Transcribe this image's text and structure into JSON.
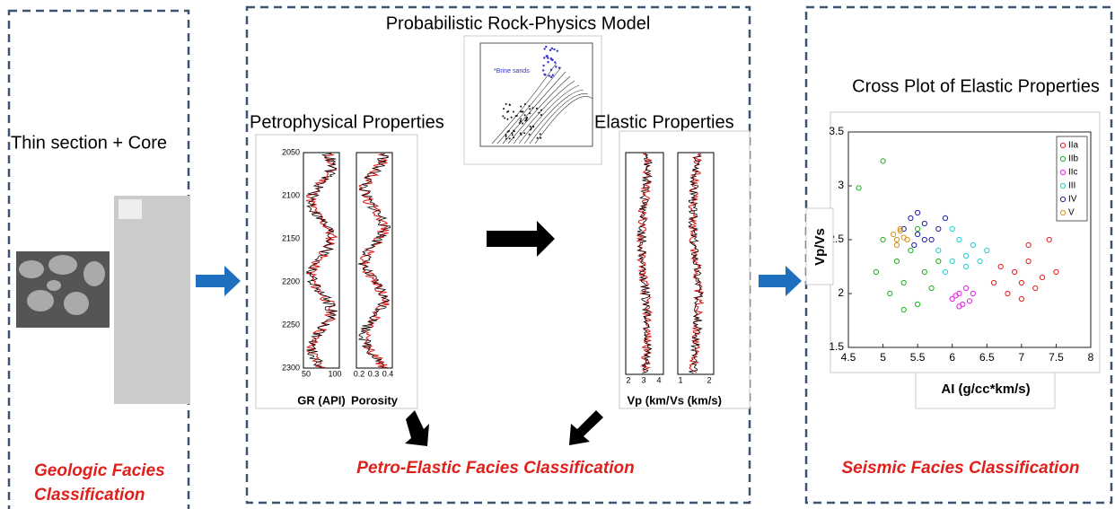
{
  "panels": [
    {
      "title": "Thin section + Core",
      "caption": [
        "Geologic Facies",
        "Classification"
      ]
    },
    {
      "title": "Probabilistic Rock-Physics Model",
      "caption": "Petro-Elastic Facies Classification",
      "inset_note": "*Brine sands",
      "petrophysical": {
        "title": "Petrophysical Properties",
        "depth_ticks": [
          2050,
          2100,
          2150,
          2200,
          2250,
          2300
        ],
        "tracks": [
          {
            "label": "GR (API)",
            "ticks": [
              50,
              100
            ]
          },
          {
            "label": "Porosity",
            "ticks": [
              0.2,
              0.3,
              0.4
            ]
          }
        ]
      },
      "elastic": {
        "title": "Elastic Properties",
        "tracks": [
          {
            "label": "Vp (km/",
            "ticks": [
              2,
              3,
              4
            ]
          },
          {
            "label": "Vs (km/s)",
            "ticks": [
              1,
              2
            ]
          }
        ]
      }
    },
    {
      "title": "Cross Plot of Elastic Properties",
      "caption": "Seismic Facies Classification"
    }
  ],
  "chart_data": {
    "type": "scatter",
    "xlabel": "AI (g/cc*km/s)",
    "ylabel": "Vp/Vs",
    "xlim": [
      4.5,
      8
    ],
    "ylim": [
      1.5,
      3.5
    ],
    "xticks": [
      4.5,
      5,
      5.5,
      6,
      6.5,
      7,
      7.5,
      8
    ],
    "yticks": [
      1.5,
      2,
      2.5,
      3,
      3.5
    ],
    "legend": "upper right",
    "series": [
      {
        "name": "IIa",
        "color": "#e02020",
        "x": [
          6.6,
          6.8,
          6.9,
          7.0,
          7.0,
          7.1,
          7.2,
          7.3,
          7.4,
          6.7,
          7.5,
          7.1
        ],
        "values": [
          2.1,
          2.0,
          2.2,
          2.1,
          1.95,
          2.3,
          2.05,
          2.15,
          2.5,
          2.25,
          2.2,
          2.45
        ]
      },
      {
        "name": "IIb",
        "color": "#20b020",
        "x": [
          4.9,
          5.1,
          5.2,
          5.3,
          5.4,
          5.5,
          5.6,
          5.7,
          5.0,
          5.8,
          5.3,
          5.5,
          4.65,
          5.0
        ],
        "values": [
          2.2,
          2.0,
          2.3,
          2.1,
          2.4,
          1.9,
          2.2,
          2.05,
          2.5,
          2.3,
          1.85,
          2.6,
          2.98,
          3.23
        ]
      },
      {
        "name": "IIc",
        "color": "#e020e0",
        "x": [
          6.0,
          6.1,
          6.15,
          6.2,
          6.05,
          6.25,
          6.1,
          6.3
        ],
        "values": [
          1.95,
          2.0,
          1.9,
          2.05,
          1.98,
          1.93,
          1.88,
          2.0
        ]
      },
      {
        "name": "III",
        "color": "#20d0d0",
        "x": [
          5.8,
          6.0,
          6.1,
          6.2,
          6.3,
          6.4,
          6.5,
          6.0,
          6.2,
          5.9
        ],
        "values": [
          2.4,
          2.3,
          2.5,
          2.35,
          2.45,
          2.3,
          2.4,
          2.6,
          2.25,
          2.2
        ]
      },
      {
        "name": "IV",
        "color": "#2020a0",
        "x": [
          5.3,
          5.4,
          5.5,
          5.6,
          5.7,
          5.8,
          5.9,
          5.5,
          5.6,
          5.45
        ],
        "values": [
          2.6,
          2.7,
          2.55,
          2.65,
          2.5,
          2.6,
          2.7,
          2.75,
          2.5,
          2.45
        ]
      },
      {
        "name": "V",
        "color": "#d09020",
        "x": [
          5.15,
          5.2,
          5.25,
          5.3,
          5.2,
          5.35,
          5.25
        ],
        "values": [
          2.55,
          2.5,
          2.6,
          2.52,
          2.45,
          2.5,
          2.58
        ]
      }
    ]
  }
}
